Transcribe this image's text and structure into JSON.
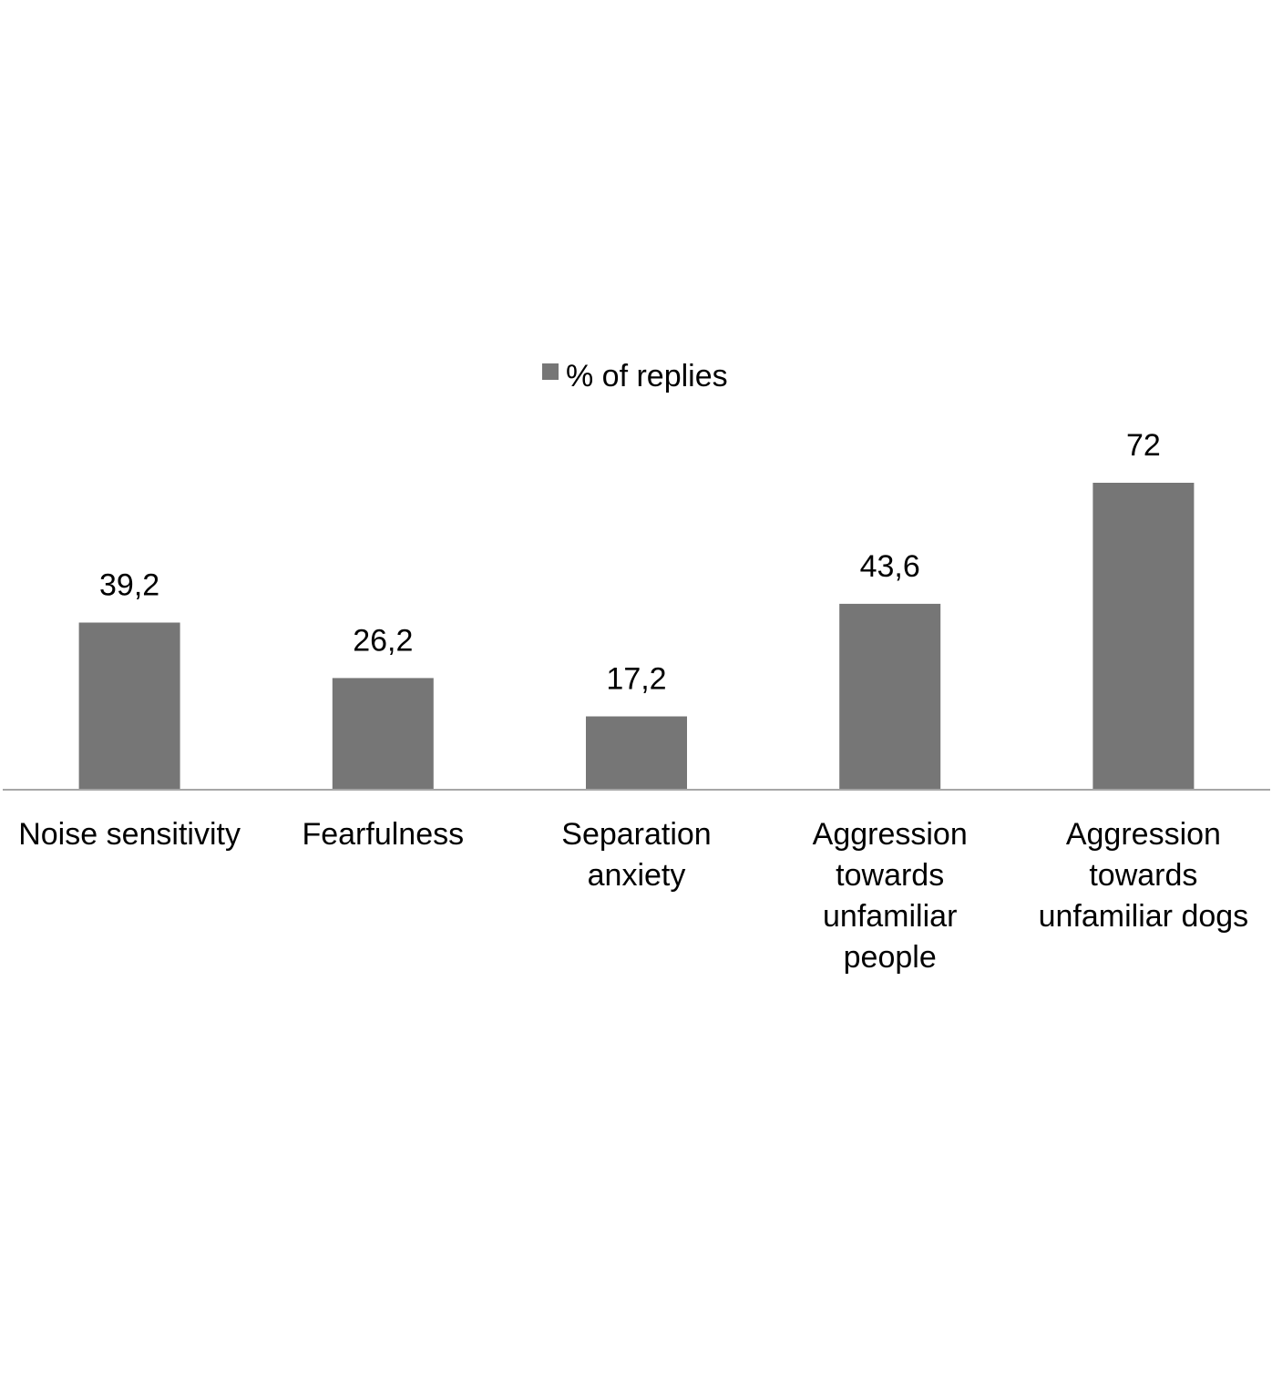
{
  "chart_data": {
    "type": "bar",
    "categories": [
      [
        "Noise sensitivity"
      ],
      [
        "Fearfulness"
      ],
      [
        "Separation",
        "anxiety"
      ],
      [
        "Aggression",
        "towards",
        "unfamiliar",
        "people"
      ],
      [
        "Aggression",
        "towards",
        "unfamiliar dogs"
      ]
    ],
    "series": [
      {
        "name": "% of replies",
        "values": [
          39.2,
          26.2,
          17.2,
          43.6,
          72
        ],
        "data_labels": [
          "39,2",
          "26,2",
          "17,2",
          "43,6",
          "72"
        ],
        "color": "#767676"
      }
    ],
    "title": "",
    "xlabel": "",
    "ylabel": "",
    "ylim": [
      0,
      72
    ],
    "grid": false,
    "legend_position": "top-center",
    "axis_color": "#a6a6a6"
  }
}
